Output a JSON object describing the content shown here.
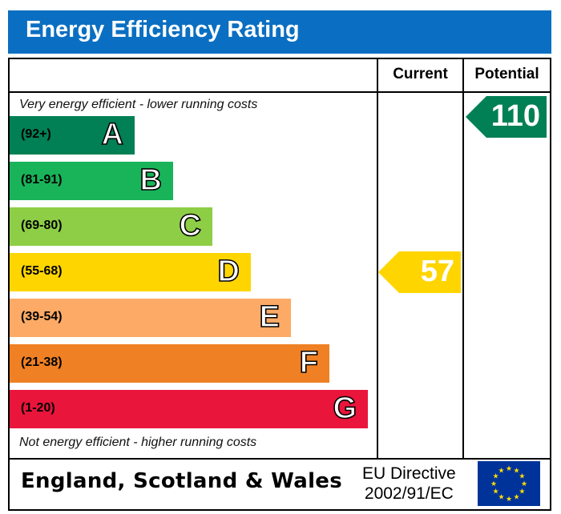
{
  "title": "Energy Efficiency Rating",
  "columns": {
    "current": "Current",
    "potential": "Potential"
  },
  "top_note": "Very energy efficient - lower running costs",
  "bottom_note": "Not energy efficient - higher running costs",
  "footer": {
    "region": "England, Scotland & Wales",
    "directive_line1": "EU Directive",
    "directive_line2": "2002/91/EC",
    "flag_icon": "eu-flag-icon"
  },
  "chart_data": {
    "type": "bar",
    "title": "Energy Efficiency Rating",
    "bands": [
      {
        "letter": "A",
        "range": "(92+)",
        "color": "#008054"
      },
      {
        "letter": "B",
        "range": "(81-91)",
        "color": "#19b459"
      },
      {
        "letter": "C",
        "range": "(69-80)",
        "color": "#8dce46"
      },
      {
        "letter": "D",
        "range": "(55-68)",
        "color": "#ffd500"
      },
      {
        "letter": "E",
        "range": "(39-54)",
        "color": "#fcaa65"
      },
      {
        "letter": "F",
        "range": "(21-38)",
        "color": "#ef8023"
      },
      {
        "letter": "G",
        "range": "(1-20)",
        "color": "#e9153b"
      }
    ],
    "current": {
      "value": "57",
      "band": "D",
      "color": "#ffd500"
    },
    "potential": {
      "value": "110",
      "band": "A",
      "color": "#008054"
    }
  }
}
